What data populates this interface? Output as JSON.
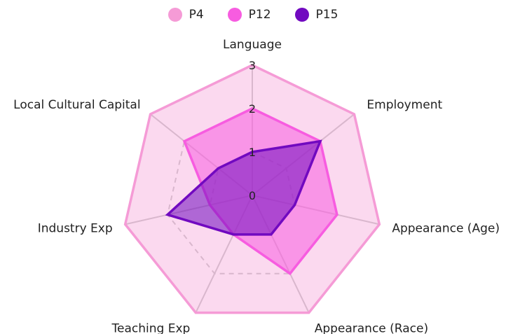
{
  "chart_data": {
    "type": "radar",
    "axes": [
      "Language",
      "Employment",
      "Appearance (Age)",
      "Appearance (Race)",
      "Teaching Exp",
      "Industry Exp",
      "Local Cultural Capital"
    ],
    "r_ticks": [
      "0",
      "1",
      "2",
      "3"
    ],
    "r_max": 3,
    "series": [
      {
        "name": "P4",
        "color": "#f59bd6",
        "values": [
          3,
          3,
          3,
          3,
          3,
          3,
          3
        ]
      },
      {
        "name": "P12",
        "color": "#f75ce0",
        "values": [
          2,
          2,
          2,
          2,
          1,
          1,
          2
        ]
      },
      {
        "name": "P15",
        "color": "#7109c0",
        "values": [
          1,
          2,
          1,
          1,
          1,
          2,
          1
        ]
      }
    ],
    "grid_style": {
      "levels_1_2": "dashed",
      "level_3": "solid"
    },
    "legend_position": "top"
  }
}
